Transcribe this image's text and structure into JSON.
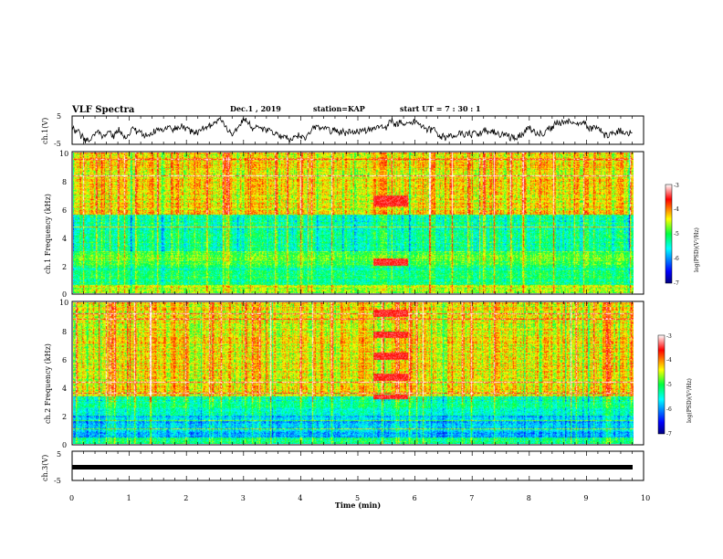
{
  "header": {
    "title": "VLF Spectra",
    "date": "Dec.1 , 2019",
    "station": "station=KAP",
    "start": "start UT = 7 : 30 : 1"
  },
  "chart_data": [
    {
      "type": "line",
      "name": "ch1-waveform",
      "ylabel": "ch.1(V)",
      "ylim": [
        -5,
        5
      ],
      "yticks": [
        "5",
        "-5"
      ],
      "xlim": [
        0,
        10
      ]
    },
    {
      "type": "heatmap",
      "name": "ch1-spectrogram",
      "ylabel": "ch.1 Frequency (kHz)",
      "ylim": [
        0,
        10
      ],
      "yticks": [
        "0",
        "2",
        "4",
        "6",
        "8",
        "10"
      ],
      "xlim": [
        0,
        10
      ],
      "colorbar": {
        "label": "log(PSD)(V²/Hz)",
        "range": [
          -7,
          -3
        ],
        "ticks": [
          "-3",
          "-4",
          "-5",
          "-6",
          "-7"
        ]
      }
    },
    {
      "type": "heatmap",
      "name": "ch2-spectrogram",
      "ylabel": "ch.2 Frequency (kHz)",
      "ylim": [
        0,
        10
      ],
      "yticks": [
        "0",
        "2",
        "4",
        "6",
        "8",
        "10"
      ],
      "xlim": [
        0,
        10
      ],
      "colorbar": {
        "label": "log(PSD)(V²/Hz)",
        "range": [
          -7,
          -3
        ],
        "ticks": [
          "-3",
          "-4",
          "-5",
          "-6",
          "-7"
        ]
      }
    },
    {
      "type": "line",
      "name": "ch3-waveform",
      "ylabel": "ch.3(V)",
      "ylim": [
        -5,
        5
      ],
      "yticks": [
        "5",
        "-5"
      ],
      "xlim": [
        0,
        10
      ],
      "xlabel": "Time (min)",
      "xticks": [
        "0",
        "1",
        "2",
        "3",
        "4",
        "5",
        "6",
        "7",
        "8",
        "9",
        "10"
      ]
    }
  ]
}
